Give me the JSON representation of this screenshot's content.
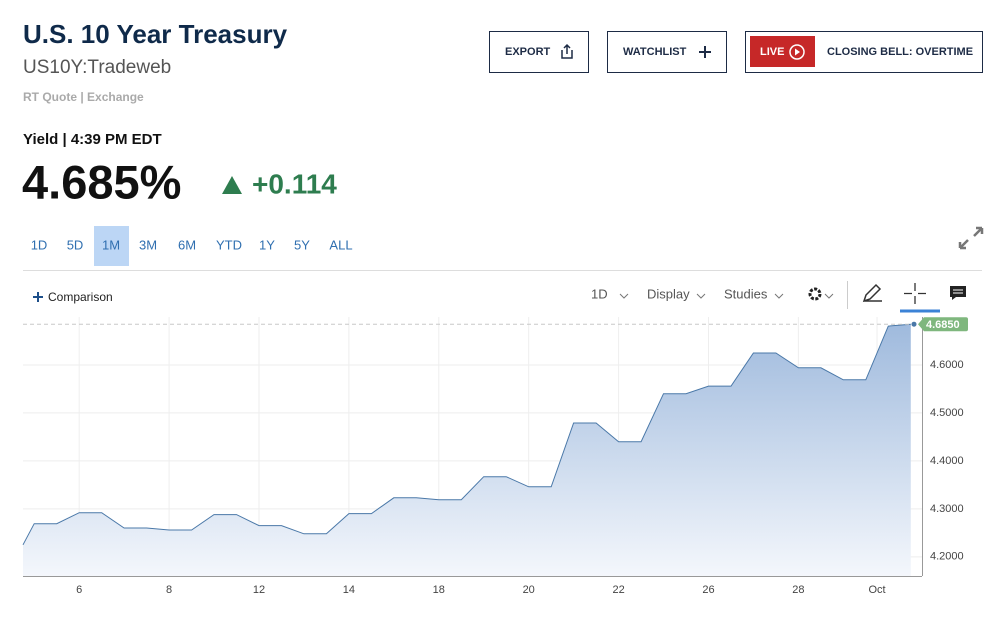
{
  "header": {
    "title": "U.S. 10 Year Treasury",
    "symbol": "US10Y:Tradeweb",
    "source": "RT Quote | Exchange"
  },
  "buttons": [
    "EXPORT",
    "WATCHLIST"
  ],
  "live": {
    "badge": "LIVE",
    "text": "CLOSING BELL: OVERTIME"
  },
  "quote": {
    "label": "Yield | 4:39 PM EDT",
    "last": "4.685%",
    "change": "+0.114"
  },
  "ranges": [
    "1D",
    "5D",
    "1M",
    "3M",
    "6M",
    "YTD",
    "1Y",
    "5Y",
    "ALL"
  ],
  "active_range": 2,
  "toolbar": {
    "comparison": "Comparison",
    "interval": "1D",
    "display": "Display",
    "studies": "Studies"
  },
  "chart_data": {
    "type": "area",
    "color": "#4a78a8",
    "x": [
      0,
      0.5,
      1.5,
      2.5,
      3.5,
      4.5,
      5.5,
      6.5,
      7.5,
      8.5,
      9.5,
      10.5,
      11.5,
      12.5,
      13.5,
      14.5,
      15.5,
      16.5,
      17.5,
      18.5,
      19.5,
      20.5,
      21.5,
      22.5,
      23.5,
      24.5,
      25.5,
      26.5,
      27.5,
      28.5,
      29.5,
      30.5,
      31.5,
      32.5,
      33.5,
      34.5,
      35.5,
      36.5,
      37.5,
      38.5,
      39.5
    ],
    "values": [
      4.225,
      4.269,
      4.269,
      4.292,
      4.292,
      4.26,
      4.26,
      4.256,
      4.256,
      4.288,
      4.288,
      4.265,
      4.265,
      4.248,
      4.248,
      4.29,
      4.29,
      4.323,
      4.323,
      4.319,
      4.319,
      4.367,
      4.367,
      4.346,
      4.346,
      4.479,
      4.479,
      4.44,
      4.44,
      4.54,
      4.54,
      4.556,
      4.556,
      4.625,
      4.625,
      4.594,
      4.594,
      4.569,
      4.569,
      4.681,
      4.685
    ],
    "last_value": {
      "value": 4.685,
      "label": "4.6850"
    },
    "xlim": [
      0,
      40
    ],
    "xticks": [
      {
        "value": 2.5,
        "label": "6"
      },
      {
        "value": 6.5,
        "label": "8"
      },
      {
        "value": 10.5,
        "label": "12"
      },
      {
        "value": 14.5,
        "label": "14"
      },
      {
        "value": 18.5,
        "label": "18"
      },
      {
        "value": 22.5,
        "label": "20"
      },
      {
        "value": 26.5,
        "label": "22"
      },
      {
        "value": 30.5,
        "label": "26"
      },
      {
        "value": 34.5,
        "label": "28"
      },
      {
        "value": 38,
        "label": "Oct"
      }
    ],
    "ylim": [
      4.16,
      4.7
    ],
    "yticks": [
      {
        "value": 4.2,
        "label": "4.2000"
      },
      {
        "value": 4.3,
        "label": "4.3000"
      },
      {
        "value": 4.4,
        "label": "4.4000"
      },
      {
        "value": 4.5,
        "label": "4.5000"
      },
      {
        "value": 4.6,
        "label": "4.6000"
      }
    ],
    "grid": true
  }
}
